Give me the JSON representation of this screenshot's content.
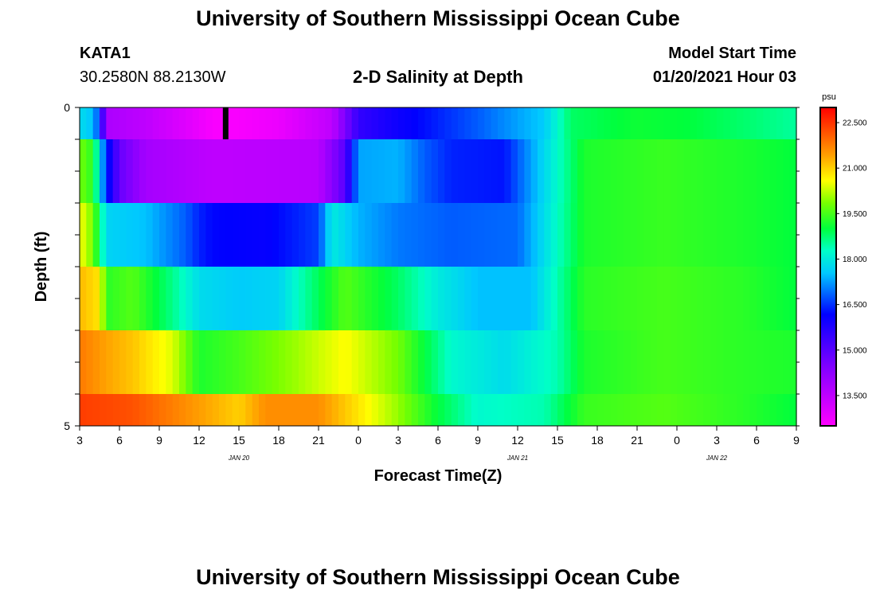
{
  "header": {
    "title": "University of Southern Mississippi Ocean Cube",
    "station_id": "KATA1",
    "coordinates": "30.2580N 88.2130W",
    "plot_title": "2-D Salinity at Depth",
    "model_start_label": "Model Start Time",
    "model_start_value": "01/20/2021 Hour 03"
  },
  "footer": {
    "title": "University of Southern Mississippi Ocean Cube"
  },
  "chart_data": {
    "type": "heatmap",
    "title": "2-D Salinity at Depth",
    "xlabel": "Forecast Time(Z)",
    "ylabel": "Depth (ft)",
    "x_range_hours": [
      0,
      54
    ],
    "y_range": [
      0,
      5
    ],
    "y_tick_labels": [
      "0",
      "5"
    ],
    "x_tick_labels": [
      "3",
      "6",
      "9",
      "12",
      "15",
      "18",
      "21",
      "0",
      "3",
      "6",
      "9",
      "12",
      "15",
      "18",
      "21",
      "0",
      "3",
      "6",
      "9"
    ],
    "date_labels": [
      {
        "label": "JAN 20",
        "at_tick": 4
      },
      {
        "label": "JAN 21",
        "at_tick": 11
      },
      {
        "label": "JAN 22",
        "at_tick": 16
      }
    ],
    "colorbar": {
      "unit": "psu",
      "min": 12.5,
      "max": 23.0,
      "tick_labels": [
        "22.500",
        "21.000",
        "19.500",
        "18.000",
        "16.500",
        "15.000",
        "13.500"
      ],
      "tick_values": [
        22.5,
        21.0,
        19.5,
        18.0,
        16.5,
        15.0,
        13.5
      ]
    },
    "series": [
      {
        "depth_band": [
          0,
          0.5
        ],
        "points": [
          [
            0,
            17.8
          ],
          [
            1,
            17.5
          ],
          [
            1.5,
            16.5
          ],
          [
            2,
            13.8
          ],
          [
            5,
            13.5
          ],
          [
            8,
            13.0
          ],
          [
            10,
            12.6
          ],
          [
            12,
            12.6
          ],
          [
            15,
            12.8
          ],
          [
            19,
            13.5
          ],
          [
            21,
            15.5
          ],
          [
            24,
            16.0
          ],
          [
            27,
            16.4
          ],
          [
            30,
            16.8
          ],
          [
            35,
            17.6
          ],
          [
            37,
            18.8
          ],
          [
            42,
            19.1
          ],
          [
            46,
            19.0
          ],
          [
            51,
            18.7
          ],
          [
            54,
            18.5
          ]
        ]
      },
      {
        "depth_band": [
          0.5,
          1.5
        ],
        "points": [
          [
            0,
            19.8
          ],
          [
            1,
            19.3
          ],
          [
            1.5,
            17.8
          ],
          [
            2,
            16.5
          ],
          [
            3,
            14.8
          ],
          [
            5,
            13.9
          ],
          [
            10,
            13.5
          ],
          [
            18,
            13.6
          ],
          [
            20,
            15.0
          ],
          [
            21,
            17.3
          ],
          [
            24,
            17.4
          ],
          [
            26,
            16.8
          ],
          [
            28,
            16.4
          ],
          [
            32,
            16.3
          ],
          [
            38,
            19.2
          ],
          [
            44,
            19.4
          ],
          [
            50,
            19.2
          ],
          [
            54,
            19.0
          ]
        ]
      },
      {
        "depth_band": [
          1.5,
          2.5
        ],
        "points": [
          [
            0,
            20.6
          ],
          [
            1,
            19.8
          ],
          [
            1.5,
            18.8
          ],
          [
            2,
            17.7
          ],
          [
            5,
            17.5
          ],
          [
            8,
            16.8
          ],
          [
            9,
            16.4
          ],
          [
            10,
            16.2
          ],
          [
            14,
            16.1
          ],
          [
            18,
            16.6
          ],
          [
            19,
            18.0
          ],
          [
            21,
            17.4
          ],
          [
            24,
            17.0
          ],
          [
            28,
            16.8
          ],
          [
            33,
            16.9
          ],
          [
            38,
            19.2
          ],
          [
            44,
            19.4
          ],
          [
            50,
            19.2
          ],
          [
            54,
            19.0
          ]
        ]
      },
      {
        "depth_band": [
          2.5,
          3.5
        ],
        "points": [
          [
            0,
            21.2
          ],
          [
            1.5,
            20.8
          ],
          [
            2,
            19.3
          ],
          [
            4,
            19.6
          ],
          [
            7,
            18.6
          ],
          [
            9,
            17.8
          ],
          [
            12,
            17.6
          ],
          [
            15,
            17.7
          ],
          [
            17,
            18.5
          ],
          [
            20,
            19.6
          ],
          [
            24,
            18.8
          ],
          [
            27,
            18.0
          ],
          [
            30,
            17.5
          ],
          [
            34,
            17.5
          ],
          [
            38,
            19.3
          ],
          [
            44,
            19.5
          ],
          [
            50,
            19.3
          ],
          [
            54,
            19.0
          ]
        ]
      },
      {
        "depth_band": [
          3.5,
          4.5
        ],
        "points": [
          [
            0,
            21.8
          ],
          [
            2,
            21.4
          ],
          [
            4,
            21.1
          ],
          [
            7,
            20.4
          ],
          [
            9,
            19.2
          ],
          [
            12,
            19.5
          ],
          [
            16,
            20.0
          ],
          [
            20,
            20.6
          ],
          [
            24,
            19.8
          ],
          [
            28,
            18.2
          ],
          [
            32,
            17.8
          ],
          [
            36,
            18.4
          ],
          [
            38,
            19.2
          ],
          [
            44,
            19.5
          ],
          [
            50,
            19.3
          ],
          [
            54,
            19.2
          ]
        ]
      },
      {
        "depth_band": [
          4.5,
          5.0
        ],
        "points": [
          [
            0,
            22.4
          ],
          [
            4,
            22.2
          ],
          [
            8,
            21.6
          ],
          [
            12,
            21.0
          ],
          [
            14,
            21.6
          ],
          [
            18,
            21.6
          ],
          [
            24,
            20.0
          ],
          [
            27,
            19.0
          ],
          [
            30,
            18.2
          ],
          [
            35,
            18.4
          ],
          [
            38,
            19.4
          ],
          [
            44,
            19.6
          ],
          [
            50,
            19.3
          ],
          [
            54,
            19.0
          ]
        ]
      }
    ],
    "annotations": [
      {
        "type": "black-marker",
        "x_hours": 11,
        "depth_band": [
          0,
          0.5
        ]
      }
    ]
  }
}
